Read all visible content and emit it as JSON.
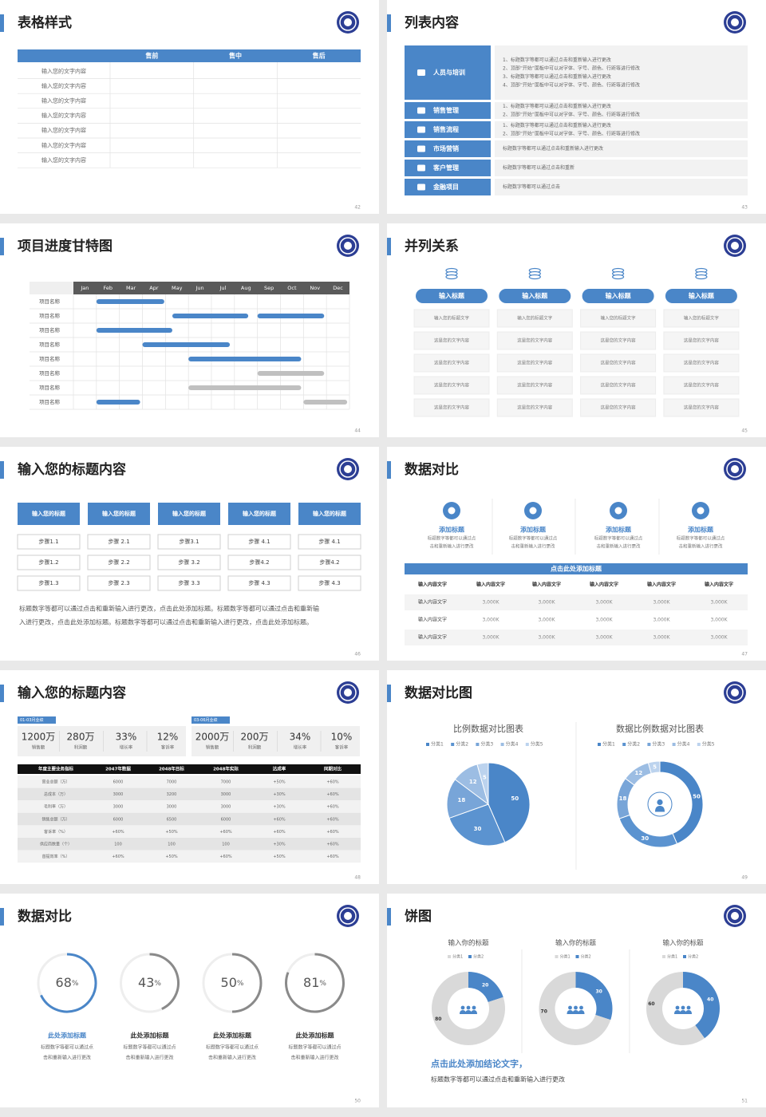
{
  "slides": [
    {
      "title": "表格样式",
      "page": "42",
      "table": {
        "header": [
          "售前",
          "售中",
          "售后"
        ],
        "rows": [
          "输入您的文字内容",
          "输入您的文字内容",
          "输入您的文字内容",
          "输入您的文字内容",
          "输入您的文字内容",
          "输入您的文字内容",
          "输入您的文字内容"
        ]
      }
    },
    {
      "title": "列表内容",
      "page": "43",
      "items": [
        {
          "label": "人员与培训",
          "lines": [
            "1、标题数字等都可以通过点击和重新输入进行更改",
            "2、顶部“开始”面板中可以对字体、字号、颜色、行距等进行修改",
            "3、标题数字等都可以通过点击和重新输入进行更改",
            "4、顶部“开始”面板中可以对字体、字号、颜色、行距等进行修改"
          ]
        },
        {
          "label": "销售管理",
          "lines": [
            "1、标题数字等都可以通过点击和重新输入进行更改",
            "2、顶部“开始”面板中可以对字体、字号、颜色、行距等进行修改"
          ]
        },
        {
          "label": "销售流程",
          "lines": [
            "1、标题数字等都可以通过点击和重新输入进行更改",
            "2、顶部“开始”面板中可以对字体、字号、颜色、行距等进行修改"
          ]
        },
        {
          "label": "市场营销",
          "lines": [
            "标题数字等都可以通过点击和重新输入进行更改"
          ]
        },
        {
          "label": "客户管理",
          "lines": [
            "标题数字等都可以通过点击和重新"
          ]
        },
        {
          "label": "金融项目",
          "lines": [
            "标题数字等都可以通过点击"
          ]
        }
      ]
    },
    {
      "title": "项目进度甘特图",
      "page": "44",
      "months": [
        "Jan",
        "Feb",
        "Mar",
        "Apr",
        "May",
        "Jun",
        "Jul",
        "Aug",
        "Sep",
        "Oct",
        "Nov",
        "Dec"
      ],
      "tasks": [
        {
          "name": "项目名称",
          "bars": [
            {
              "start": 1,
              "end": 3.95,
              "color": "#4a86c8"
            }
          ]
        },
        {
          "name": "项目名称",
          "bars": [
            {
              "start": 4.3,
              "end": 7.6,
              "color": "#4a86c8"
            },
            {
              "start": 8,
              "end": 10.9,
              "color": "#4a86c8"
            }
          ]
        },
        {
          "name": "项目名称",
          "bars": [
            {
              "start": 1,
              "end": 4.3,
              "color": "#4a86c8"
            }
          ]
        },
        {
          "name": "项目名称",
          "bars": [
            {
              "start": 3,
              "end": 6.8,
              "color": "#4a86c8"
            }
          ]
        },
        {
          "name": "项目名称",
          "bars": [
            {
              "start": 5,
              "end": 9.9,
              "color": "#4a86c8"
            }
          ]
        },
        {
          "name": "项目名称",
          "bars": [
            {
              "start": 8,
              "end": 10.9,
              "color": "#c0c0c0"
            }
          ]
        },
        {
          "name": "项目名称",
          "bars": [
            {
              "start": 5,
              "end": 9.9,
              "color": "#c0c0c0"
            }
          ]
        },
        {
          "name": "项目名称",
          "bars": [
            {
              "start": 1,
              "end": 2.9,
              "color": "#4a86c8"
            },
            {
              "start": 10,
              "end": 11.9,
              "color": "#c0c0c0"
            }
          ]
        }
      ]
    },
    {
      "title": "并列关系",
      "page": "45",
      "columns": [
        {
          "heading": "输入标题",
          "cells": [
            "输入您的标题文字",
            "这是您的文字内容",
            "这是您的文字内容",
            "这是您的文字内容",
            "这是您的文字内容"
          ]
        },
        {
          "heading": "输入标题",
          "cells": [
            "输入您的标题文字",
            "这是您的文字内容",
            "这是您的文字内容",
            "这是您的文字内容",
            "这是您的文字内容"
          ]
        },
        {
          "heading": "输入标题",
          "cells": [
            "输入您的标题文字",
            "这是您的文字内容",
            "这是您的文字内容",
            "这是您的文字内容",
            "这是您的文字内容"
          ]
        },
        {
          "heading": "输入标题",
          "cells": [
            "输入您的标题文字",
            "这是您的文字内容",
            "这是您的文字内容",
            "这是您的文字内容",
            "这是您的文字内容"
          ]
        }
      ]
    },
    {
      "title": "输入您的标题内容",
      "page": "46",
      "columns": [
        {
          "heading": "输入您的标题",
          "steps": [
            "步骤1.1",
            "步骤1.2",
            "步骤1.3"
          ]
        },
        {
          "heading": "输入您的标题",
          "steps": [
            "步骤 2.1",
            "步骤 2.2",
            "步骤 2.3"
          ]
        },
        {
          "heading": "输入您的标题",
          "steps": [
            "步骤3.1",
            "步骤 3.2",
            "步骤 3.3"
          ]
        },
        {
          "heading": "输入您的标题",
          "steps": [
            "步骤 4.1",
            "步骤4.2",
            "步骤 4.3"
          ]
        },
        {
          "heading": "输入您的标题",
          "steps": [
            "步骤 4.1",
            "步骤4.2",
            "步骤 4.3"
          ]
        }
      ],
      "paragraph": [
        "标题数字等都可以通过点击和重新输入进行更改，点击此处添加标题。标题数字等都可以通过点击和重新输",
        "入进行更改，点击此处添加标题。标题数字等都可以通过点击和重新输入进行更改，点击此处添加标题。"
      ]
    },
    {
      "title": "数据对比",
      "page": "47",
      "features": [
        {
          "heading": "添加标题",
          "text": [
            "标题数字等都可以通过点",
            "击和重新输入进行更改"
          ]
        },
        {
          "heading": "添加标题",
          "text": [
            "标题数字等都可以通过点",
            "击和重新输入进行更改"
          ]
        },
        {
          "heading": "添加标题",
          "text": [
            "标题数字等都可以通过点",
            "击和重新输入进行更改"
          ]
        },
        {
          "heading": "添加标题",
          "text": [
            "标题数字等都可以通过点",
            "击和重新输入进行更改"
          ]
        }
      ],
      "table": {
        "caption": "点击此处添加标题",
        "header": [
          "输入内容文字",
          "输入内容文字",
          "输入内容文字",
          "输入内容文字",
          "输入内容文字",
          "输入内容文字"
        ],
        "rows": [
          [
            "输入内容文字",
            "3,000K",
            "3,000K",
            "3,000K",
            "3,000K",
            "3,000K"
          ],
          [
            "输入内容文字",
            "3,000K",
            "3,000K",
            "3,000K",
            "3,000K",
            "3,000K"
          ],
          [
            "输入内容文字",
            "3,000K",
            "3,000K",
            "3,000K",
            "3,000K",
            "3,000K"
          ]
        ]
      }
    },
    {
      "title": "输入您的标题内容",
      "page": "48",
      "groups": [
        {
          "tag": "01-03月业绩",
          "stats": [
            {
              "value": "1200万",
              "label": "销售额"
            },
            {
              "value": "280万",
              "label": "利润额"
            },
            {
              "value": "33%",
              "label": "增长率"
            },
            {
              "value": "12%",
              "label": "客诉率"
            }
          ]
        },
        {
          "tag": "03-06月业绩",
          "stats": [
            {
              "value": "2000万",
              "label": "销售额"
            },
            {
              "value": "200万",
              "label": "利润额"
            },
            {
              "value": "34%",
              "label": "增长率"
            },
            {
              "value": "10%",
              "label": "客诉率"
            }
          ]
        }
      ],
      "table": {
        "header": [
          "年度主要业务指标",
          "2047年数据",
          "2048年目标",
          "2048年实际",
          "达成率",
          "同期对比"
        ],
        "rows": [
          [
            "营业总额（万）",
            "6000",
            "7000",
            "7000",
            "+50%",
            "+60%"
          ],
          [
            "总成本（万）",
            "3000",
            "3200",
            "3000",
            "+30%",
            "+60%"
          ],
          [
            "毛利率（万）",
            "3000",
            "3000",
            "3000",
            "+30%",
            "+60%"
          ],
          [
            "销售总额（万）",
            "6000",
            "6500",
            "6000",
            "+60%",
            "+60%"
          ],
          [
            "客诉率（%）",
            "+60%",
            "+50%",
            "+60%",
            "+60%",
            "+60%"
          ],
          [
            "供应商数量（个）",
            "100",
            "100",
            "100",
            "+30%",
            "+60%"
          ],
          [
            "首提效率（%）",
            "+60%",
            "+50%",
            "+60%",
            "+50%",
            "+60%"
          ]
        ]
      }
    },
    {
      "title": "数据对比图",
      "page": "49",
      "charts": [
        {
          "type": "pie",
          "title": "比例数据对比图表",
          "categories": [
            "分类1",
            "分类2",
            "分类3",
            "分类4",
            "分类5"
          ],
          "values": [
            50,
            30,
            18,
            12,
            5
          ],
          "colors": [
            "#4a86c8",
            "#5b93d0",
            "#78a5d8",
            "#9cbde3",
            "#bcd3ee"
          ]
        },
        {
          "type": "donut",
          "title": "数据比例数据对比图表",
          "categories": [
            "分类1",
            "分类2",
            "分类3",
            "分类4",
            "分类5"
          ],
          "values": [
            50,
            30,
            18,
            12,
            5
          ],
          "colors": [
            "#4a86c8",
            "#5b93d0",
            "#78a5d8",
            "#9cbde3",
            "#bcd3ee"
          ]
        }
      ]
    },
    {
      "title": "数据对比",
      "page": "50",
      "rings": [
        {
          "value": 68,
          "unit": "%",
          "color": "#4a86c8",
          "heading": "此处添加标题",
          "text": [
            "标题数字等都可以通过点",
            "击和重新输入进行更改"
          ]
        },
        {
          "value": 43,
          "unit": "%",
          "color": "#8a8a8a",
          "heading": "此处添加标题",
          "text": [
            "标题数字等都可以通过点",
            "击和重新输入进行更改"
          ]
        },
        {
          "value": 50,
          "unit": "%",
          "color": "#8a8a8a",
          "heading": "此处添加标题",
          "text": [
            "标题数字等都可以通过点",
            "击和重新输入进行更改"
          ]
        },
        {
          "value": 81,
          "unit": "%",
          "color": "#8a8a8a",
          "heading": "此处添加标题",
          "text": [
            "标题数字等都可以通过点",
            "击和重新输入进行更改"
          ]
        }
      ]
    },
    {
      "title": "饼图",
      "page": "51",
      "charts": [
        {
          "type": "donut",
          "title": "输入你的标题",
          "categories": [
            "分类1",
            "分类2"
          ],
          "values": [
            80,
            20
          ],
          "colors": [
            "#d9d9d9",
            "#4a86c8"
          ]
        },
        {
          "type": "donut",
          "title": "输入你的标题",
          "categories": [
            "分类1",
            "分类2"
          ],
          "values": [
            70,
            30
          ],
          "colors": [
            "#d9d9d9",
            "#4a86c8"
          ]
        },
        {
          "type": "donut",
          "title": "输入你的标题",
          "categories": [
            "分类1",
            "分类2"
          ],
          "values": [
            60,
            40
          ],
          "colors": [
            "#d9d9d9",
            "#4a86c8"
          ]
        }
      ],
      "conclusion": "点击此处添加结论文字，",
      "note": "标题数字等都可以通过点击和重新输入进行更改"
    }
  ]
}
